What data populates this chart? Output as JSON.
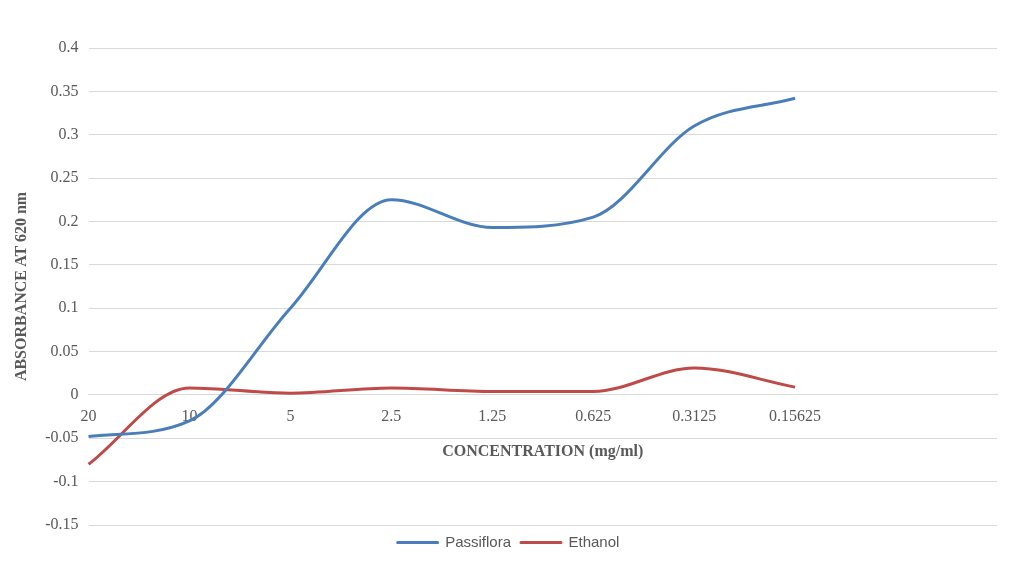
{
  "chart_data": {
    "type": "line",
    "xlabel": "CONCENTRATION (mg/ml)",
    "ylabel": "ABSORBANCE AT 620 nm",
    "categories": [
      "20",
      "10",
      "5",
      "2.5",
      "1.25",
      "0.625",
      "0.3125",
      "0.15625",
      null,
      null
    ],
    "series": [
      {
        "name": "Passiflora",
        "color": "#4a7ebb",
        "values": [
          -0.048,
          -0.03,
          0.1,
          0.225,
          0.193,
          0.205,
          0.31,
          0.342,
          null,
          null
        ]
      },
      {
        "name": "Ethanol",
        "color": "#be4b48",
        "values": [
          -0.08,
          0.008,
          0.002,
          0.008,
          0.004,
          0.004,
          0.031,
          0.009,
          null,
          null
        ]
      }
    ],
    "ylim": [
      -0.15,
      0.4
    ],
    "yticks": [
      -0.15,
      -0.1,
      -0.05,
      0,
      0.05,
      0.1,
      0.15,
      0.2,
      0.25,
      0.3,
      0.35,
      0.4
    ],
    "grid": "y",
    "legend": "bottom",
    "marker": "none",
    "line_style": "solid"
  }
}
